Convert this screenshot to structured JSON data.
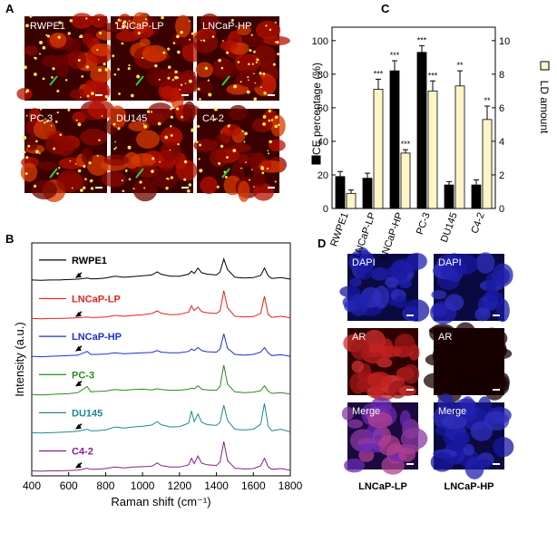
{
  "panel_labels": [
    "A",
    "B",
    "C",
    "D"
  ],
  "panel_a": {
    "images": [
      "RWPE1",
      "LNCaP-LP",
      "LNCaP-HP",
      "PC-3",
      "DU145",
      "C4-2"
    ]
  },
  "panel_d": {
    "rows": [
      [
        "DAPI",
        "DAPI"
      ],
      [
        "AR",
        "AR"
      ],
      [
        "Merge",
        "Merge"
      ]
    ],
    "columns": [
      "LNCaP-LP",
      "LNCaP-HP"
    ]
  },
  "chart_data": [
    {
      "type": "bar",
      "categories": [
        "RWPE1",
        "LNCaP-LP",
        "LNCaP-HP",
        "PC-3",
        "DU145",
        "C4-2"
      ],
      "series": [
        {
          "name": "CE percentage (%)",
          "color": "#000000",
          "values": [
            19,
            18,
            82,
            93,
            14,
            14
          ],
          "errors": [
            3,
            3,
            6,
            4,
            2,
            3
          ],
          "significance": [
            null,
            null,
            "***",
            "***",
            null,
            null
          ]
        },
        {
          "name": "LD amount",
          "color": "#fdf5c8",
          "axis": "y2",
          "values": [
            0.9,
            7.1,
            3.3,
            7.0,
            7.3,
            5.3
          ],
          "errors": [
            0.2,
            0.6,
            0.2,
            0.6,
            0.9,
            0.8
          ],
          "significance": [
            null,
            "***",
            "***",
            "***",
            "**",
            "**"
          ]
        }
      ],
      "ylim": [
        0,
        108
      ],
      "yticks": [
        0,
        20,
        40,
        60,
        80,
        100
      ],
      "y2lim": [
        0,
        10.8
      ],
      "y2ticks": [
        0,
        2,
        4,
        6,
        8,
        10
      ]
    },
    {
      "type": "line",
      "xlabel": "Raman shift (cm⁻¹)",
      "ylabel": "Intensity (a.u.)",
      "x": [
        400,
        450,
        500,
        550,
        600,
        650,
        700,
        720,
        750,
        800,
        850,
        900,
        950,
        1000,
        1050,
        1080,
        1100,
        1150,
        1200,
        1250,
        1265,
        1280,
        1300,
        1320,
        1350,
        1400,
        1420,
        1440,
        1460,
        1500,
        1550,
        1600,
        1640,
        1660,
        1680,
        1700,
        1750,
        1800
      ],
      "xlim": [
        400,
        1800
      ],
      "xticks": [
        400,
        600,
        800,
        1000,
        1200,
        1400,
        1600,
        1800
      ],
      "ylim": [
        -1,
        60
      ],
      "series": [
        {
          "name": "RWPE1",
          "color": "#000000",
          "values": [
            50.3,
            50.2,
            50.3,
            50.3,
            50.4,
            50.5,
            50.8,
            50.6,
            50.6,
            50.8,
            51.3,
            51.0,
            51.2,
            51.4,
            51.6,
            52.4,
            51.8,
            51.3,
            51.3,
            51.8,
            52.6,
            52.0,
            53.4,
            52.2,
            51.8,
            51.6,
            52.4,
            55.8,
            53.0,
            51.0,
            50.8,
            50.9,
            51.5,
            53.4,
            51.4,
            50.7,
            50.9,
            50.5
          ]
        },
        {
          "name": "LNCaP-LP",
          "color": "#e8201c",
          "values": [
            40.2,
            40.1,
            40.2,
            40.2,
            40.3,
            40.4,
            40.6,
            40.5,
            40.5,
            40.6,
            41.0,
            40.8,
            41.0,
            41.2,
            41.5,
            42.2,
            41.6,
            41.2,
            41.3,
            41.9,
            43.5,
            42.3,
            43.2,
            42.0,
            41.7,
            41.5,
            42.2,
            47.5,
            43.0,
            40.8,
            40.6,
            40.7,
            41.5,
            46.0,
            41.3,
            40.5,
            40.8,
            40.4
          ]
        },
        {
          "name": "LNCaP-HP",
          "color": "#1f2fd0",
          "values": [
            30.3,
            30.2,
            30.3,
            30.4,
            30.5,
            30.6,
            31.6,
            30.8,
            30.8,
            30.9,
            31.2,
            31.0,
            31.1,
            31.2,
            31.3,
            31.8,
            31.4,
            31.2,
            31.2,
            31.6,
            32.2,
            31.8,
            32.6,
            31.8,
            31.5,
            31.4,
            32.2,
            36.2,
            32.4,
            30.8,
            30.6,
            30.8,
            31.4,
            32.6,
            31.2,
            30.5,
            30.7,
            30.3
          ]
        },
        {
          "name": "PC-3",
          "color": "#2a8a1e",
          "values": [
            20.3,
            20.2,
            20.3,
            20.4,
            20.5,
            20.8,
            22.4,
            21.0,
            21.1,
            21.2,
            21.6,
            21.4,
            21.6,
            21.7,
            21.5,
            21.8,
            21.6,
            21.4,
            21.4,
            21.7,
            22.0,
            21.8,
            22.6,
            21.7,
            21.5,
            21.4,
            22.4,
            28.0,
            23.0,
            21.0,
            20.8,
            20.9,
            21.3,
            22.6,
            21.2,
            20.6,
            20.8,
            20.4
          ]
        },
        {
          "name": "DU145",
          "color": "#1e8a8a",
          "values": [
            10.3,
            10.2,
            10.3,
            10.4,
            10.5,
            10.7,
            11.2,
            10.8,
            10.8,
            11.0,
            11.8,
            11.5,
            11.8,
            12.0,
            12.3,
            13.2,
            12.4,
            11.8,
            11.9,
            12.8,
            16.0,
            13.2,
            15.2,
            13.0,
            12.4,
            12.2,
            13.0,
            17.5,
            13.5,
            11.2,
            11.0,
            11.2,
            12.5,
            18.0,
            12.0,
            10.8,
            11.2,
            10.5
          ]
        },
        {
          "name": "C4-2",
          "color": "#8a1e8a",
          "values": [
            0.3,
            0.2,
            0.3,
            0.3,
            0.4,
            0.5,
            1.0,
            0.7,
            0.7,
            0.9,
            1.3,
            1.1,
            1.3,
            1.4,
            1.5,
            2.4,
            1.7,
            1.3,
            1.3,
            1.9,
            3.6,
            2.2,
            4.2,
            2.3,
            1.9,
            1.7,
            2.6,
            8.0,
            3.0,
            1.0,
            0.8,
            0.9,
            1.6,
            3.6,
            1.4,
            0.7,
            0.9,
            0.5
          ]
        }
      ]
    }
  ]
}
